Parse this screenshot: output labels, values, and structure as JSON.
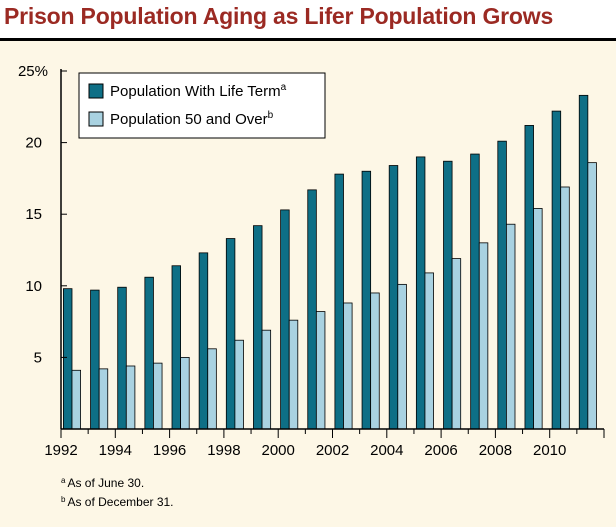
{
  "title": "Prison Population Aging as Lifer Population Grows",
  "colors": {
    "title": "#9b2a23",
    "background": "#fdf7e6",
    "series_life": "#0e6f86",
    "series_50": "#a9d2e1"
  },
  "chart_data": {
    "type": "bar",
    "title": "Prison Population Aging as Lifer Population Grows",
    "xlabel": "",
    "ylabel": "",
    "ylim": [
      0,
      25
    ],
    "yticks": [
      0,
      5,
      10,
      15,
      20,
      25
    ],
    "ytick_labels": [
      "",
      "5",
      "10",
      "15",
      "20",
      "25%"
    ],
    "categories": [
      "1992",
      "1993",
      "1994",
      "1995",
      "1996",
      "1997",
      "1998",
      "1999",
      "2000",
      "2001",
      "2002",
      "2003",
      "2004",
      "2005",
      "2006",
      "2007",
      "2008",
      "2009",
      "2010",
      "2011"
    ],
    "xtick_labels": [
      "1992",
      "",
      "1994",
      "",
      "1996",
      "",
      "1998",
      "",
      "2000",
      "",
      "2002",
      "",
      "2004",
      "",
      "2006",
      "",
      "2008",
      "",
      "2010",
      ""
    ],
    "series": [
      {
        "name": "Population With Life Term",
        "footnote": "a",
        "values": [
          9.8,
          9.7,
          9.9,
          10.6,
          11.4,
          12.3,
          13.3,
          14.2,
          15.3,
          16.7,
          17.8,
          18.0,
          18.4,
          19.0,
          18.7,
          19.2,
          20.1,
          21.2,
          22.2,
          23.3
        ]
      },
      {
        "name": "Population 50 and Over",
        "footnote": "b",
        "values": [
          4.1,
          4.2,
          4.4,
          4.6,
          5.0,
          5.6,
          6.2,
          6.9,
          7.6,
          8.2,
          8.8,
          9.5,
          10.1,
          10.9,
          11.9,
          13.0,
          14.3,
          15.4,
          16.9,
          18.6
        ]
      }
    ],
    "legend_position": "top-left",
    "grid": false
  },
  "footnotes": [
    {
      "mark": "a",
      "text": "As of June 30."
    },
    {
      "mark": "b",
      "text": "As of December 31."
    }
  ]
}
